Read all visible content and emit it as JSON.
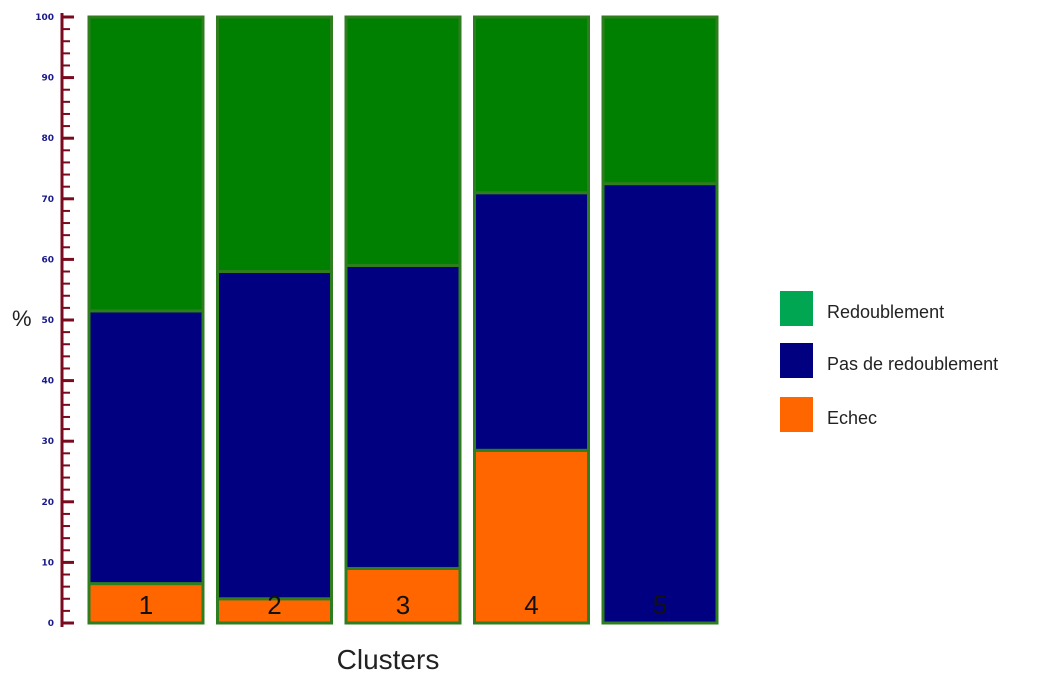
{
  "chart_data": {
    "type": "bar",
    "stacked": true,
    "categories": [
      "1",
      "2",
      "3",
      "4",
      "5"
    ],
    "series": [
      {
        "name": "Echec",
        "color": "#ff6600",
        "values": [
          6.5,
          4,
          9,
          28.5,
          0
        ]
      },
      {
        "name": "Pas de redoublement",
        "color": "#000080",
        "values": [
          45,
          54,
          50,
          42.5,
          72.5
        ]
      },
      {
        "name": "Redoublement",
        "color": "#008000",
        "values": [
          48.5,
          42,
          41,
          29,
          27.5
        ]
      }
    ],
    "legend": {
      "placement": "right",
      "items": [
        {
          "label": "Redoublement",
          "color": "#00a651"
        },
        {
          "label": "Pas de redoublement",
          "color": "#000080"
        },
        {
          "label": "Echec",
          "color": "#ff6600"
        }
      ]
    },
    "title": "",
    "xlabel": "Clusters",
    "ylabel": "%",
    "ylim": [
      0,
      100
    ],
    "yticks": [
      0,
      10,
      20,
      30,
      40,
      50,
      60,
      70,
      80,
      90,
      100
    ],
    "axis_color": "#7a0a1e",
    "bar_border_color": "#2e7d1e",
    "grid": false
  }
}
